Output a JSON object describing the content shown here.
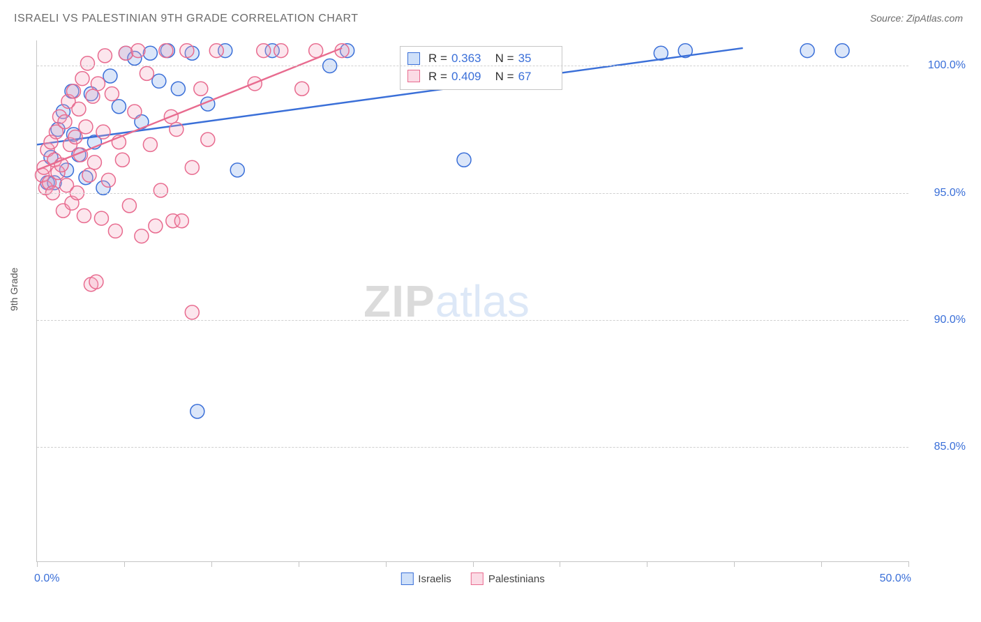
{
  "title": "ISRAELI VS PALESTINIAN 9TH GRADE CORRELATION CHART",
  "source": "Source: ZipAtlas.com",
  "ylabel": "9th Grade",
  "watermark": {
    "a": "ZIP",
    "b": "atlas"
  },
  "chart": {
    "type": "scatter",
    "xlim": [
      0,
      50
    ],
    "ylim": [
      80.5,
      101
    ],
    "x_ticks": [
      0,
      5,
      10,
      15,
      20,
      25,
      30,
      35,
      40,
      45,
      50
    ],
    "x_tick_labels": {
      "first": "0.0%",
      "last": "50.0%"
    },
    "y_gridlines": [
      85.0,
      90.0,
      95.0,
      100.0
    ],
    "y_tick_labels": [
      "85.0%",
      "90.0%",
      "95.0%",
      "100.0%"
    ],
    "grid_color": "#d0d0d0",
    "axis_color": "#c4c4c4",
    "tick_label_color": "#3a6fd8",
    "background_color": "#ffffff",
    "marker_radius": 10,
    "marker_fill_opacity": 0.28,
    "marker_stroke_width": 1.5,
    "trend_line_width": 2.4,
    "series": [
      {
        "name": "Israelis",
        "color_stroke": "#3a6fd8",
        "color_fill": "#7ea7e8",
        "R": "0.363",
        "N": "35",
        "trend": {
          "x1": 0,
          "y1": 96.9,
          "x2": 40.5,
          "y2": 100.7
        },
        "points": [
          [
            0.6,
            95.4
          ],
          [
            0.8,
            96.4
          ],
          [
            1.0,
            95.4
          ],
          [
            1.2,
            97.5
          ],
          [
            1.5,
            98.2
          ],
          [
            1.7,
            95.9
          ],
          [
            2.0,
            99.0
          ],
          [
            2.1,
            97.3
          ],
          [
            2.4,
            96.5
          ],
          [
            2.8,
            95.6
          ],
          [
            3.1,
            98.9
          ],
          [
            3.3,
            97.0
          ],
          [
            3.8,
            95.2
          ],
          [
            4.2,
            99.6
          ],
          [
            4.7,
            98.4
          ],
          [
            5.1,
            100.5
          ],
          [
            5.6,
            100.3
          ],
          [
            6.0,
            97.8
          ],
          [
            6.5,
            100.5
          ],
          [
            7.0,
            99.4
          ],
          [
            7.5,
            100.6
          ],
          [
            8.1,
            99.1
          ],
          [
            8.9,
            100.5
          ],
          [
            9.2,
            86.4
          ],
          [
            9.8,
            98.5
          ],
          [
            10.8,
            100.6
          ],
          [
            11.5,
            95.9
          ],
          [
            13.5,
            100.6
          ],
          [
            16.8,
            100.0
          ],
          [
            17.8,
            100.6
          ],
          [
            24.5,
            96.3
          ],
          [
            35.8,
            100.5
          ],
          [
            37.2,
            100.6
          ],
          [
            44.2,
            100.6
          ],
          [
            46.2,
            100.6
          ]
        ]
      },
      {
        "name": "Palestinians",
        "color_stroke": "#e86b8f",
        "color_fill": "#f3a6bd",
        "R": "0.409",
        "N": "67",
        "trend": {
          "x1": 0,
          "y1": 95.9,
          "x2": 17.5,
          "y2": 100.7
        },
        "points": [
          [
            0.3,
            95.7
          ],
          [
            0.4,
            96.0
          ],
          [
            0.5,
            95.2
          ],
          [
            0.6,
            96.7
          ],
          [
            0.7,
            95.4
          ],
          [
            0.8,
            97.0
          ],
          [
            0.9,
            95.0
          ],
          [
            1.0,
            96.3
          ],
          [
            1.1,
            97.4
          ],
          [
            1.2,
            95.8
          ],
          [
            1.3,
            98.0
          ],
          [
            1.4,
            96.1
          ],
          [
            1.5,
            94.3
          ],
          [
            1.6,
            97.8
          ],
          [
            1.7,
            95.3
          ],
          [
            1.8,
            98.6
          ],
          [
            1.9,
            96.9
          ],
          [
            2.0,
            94.6
          ],
          [
            2.1,
            99.0
          ],
          [
            2.2,
            97.2
          ],
          [
            2.3,
            95.0
          ],
          [
            2.4,
            98.3
          ],
          [
            2.5,
            96.5
          ],
          [
            2.6,
            99.5
          ],
          [
            2.7,
            94.1
          ],
          [
            2.8,
            97.6
          ],
          [
            2.9,
            100.1
          ],
          [
            3.0,
            95.7
          ],
          [
            3.1,
            91.4
          ],
          [
            3.2,
            98.8
          ],
          [
            3.3,
            96.2
          ],
          [
            3.4,
            91.5
          ],
          [
            3.5,
            99.3
          ],
          [
            3.7,
            94.0
          ],
          [
            3.8,
            97.4
          ],
          [
            3.9,
            100.4
          ],
          [
            4.1,
            95.5
          ],
          [
            4.3,
            98.9
          ],
          [
            4.5,
            93.5
          ],
          [
            4.7,
            97.0
          ],
          [
            4.9,
            96.3
          ],
          [
            5.1,
            100.5
          ],
          [
            5.3,
            94.5
          ],
          [
            5.6,
            98.2
          ],
          [
            5.8,
            100.6
          ],
          [
            6.0,
            93.3
          ],
          [
            6.3,
            99.7
          ],
          [
            6.5,
            96.9
          ],
          [
            6.8,
            93.7
          ],
          [
            7.1,
            95.1
          ],
          [
            7.4,
            100.6
          ],
          [
            7.7,
            98.0
          ],
          [
            7.8,
            93.9
          ],
          [
            8.0,
            97.5
          ],
          [
            8.3,
            93.9
          ],
          [
            8.6,
            100.6
          ],
          [
            8.9,
            96.0
          ],
          [
            8.9,
            90.3
          ],
          [
            9.4,
            99.1
          ],
          [
            9.8,
            97.1
          ],
          [
            10.3,
            100.6
          ],
          [
            12.5,
            99.3
          ],
          [
            13.0,
            100.6
          ],
          [
            14.0,
            100.6
          ],
          [
            15.2,
            99.1
          ],
          [
            16.0,
            100.6
          ],
          [
            17.5,
            100.6
          ]
        ]
      }
    ]
  },
  "bottom_legend": [
    {
      "label": "Israelis",
      "stroke": "#3a6fd8",
      "fill": "#cfe0f9"
    },
    {
      "label": "Palestinians",
      "stroke": "#e86b8f",
      "fill": "#fbdbe5"
    }
  ]
}
